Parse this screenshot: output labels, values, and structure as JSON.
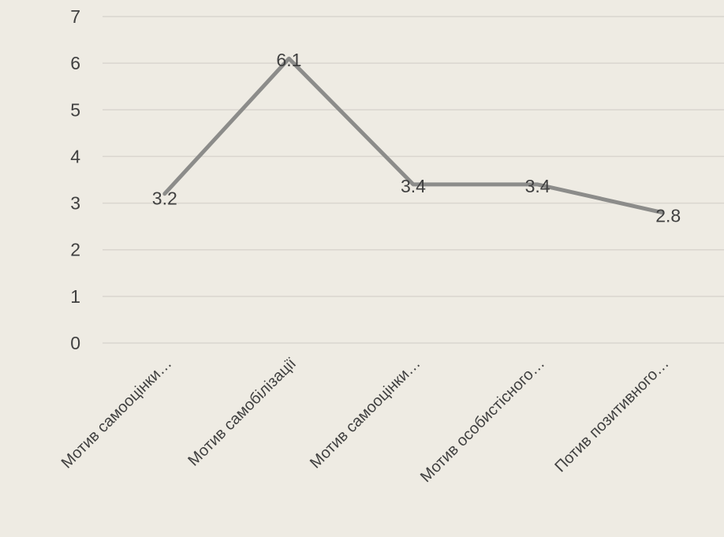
{
  "chart_data": {
    "type": "line",
    "title": "",
    "xlabel": "",
    "ylabel": "",
    "categories": [
      "Мотив самооцінки…",
      "Мотив самобілізації",
      "Мотив самооцінки…",
      "Мотив особистісного…",
      "Потив позитивного…"
    ],
    "series": [
      {
        "values": [
          3.2,
          6.1,
          3.4,
          3.4,
          2.8
        ]
      }
    ],
    "ylim": [
      0,
      7
    ],
    "yticks": [
      "0",
      "1",
      "2",
      "3",
      "4",
      "5",
      "6",
      "7"
    ],
    "data_labels": [
      "3.2",
      "6.1",
      "3.4",
      "3.4",
      "2.8"
    ],
    "grid": true,
    "legend": "none",
    "colors": {
      "line": "#8c8c8a",
      "grid": "#d9d6cf",
      "text": "#404040",
      "background": "#eeebe3"
    }
  }
}
